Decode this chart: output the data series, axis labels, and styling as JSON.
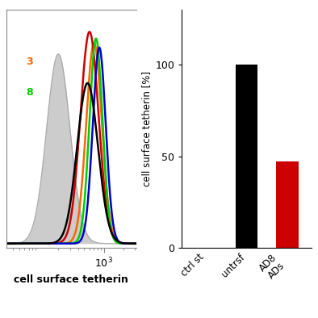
{
  "bar_categories": [
    "ctrl st",
    "untrsf",
    "AD8\nADs"
  ],
  "bar_values": [
    0,
    100,
    47
  ],
  "bar_colors": [
    "#000000",
    "#000000",
    "#cc0000"
  ],
  "ylabel_bar": "cell surface tetherin [%]",
  "yticks_bar": [
    0,
    50,
    100
  ],
  "ylim_bar": [
    0,
    130
  ],
  "flow_curves": [
    {
      "color": "#aaaaaa",
      "mean": 2.3,
      "std": 0.18,
      "peak": 0.85,
      "filled": true
    },
    {
      "color": "#ff6600",
      "mean": 2.85,
      "std": 0.12,
      "peak": 0.9,
      "filled": false
    },
    {
      "color": "#cc0000",
      "mean": 2.78,
      "std": 0.14,
      "peak": 0.95,
      "filled": false
    },
    {
      "color": "#00cc00",
      "mean": 2.88,
      "std": 0.1,
      "peak": 0.92,
      "filled": false
    },
    {
      "color": "#0000cc",
      "mean": 2.93,
      "std": 0.1,
      "peak": 0.88,
      "filled": false
    },
    {
      "color": "#000000",
      "mean": 2.75,
      "std": 0.16,
      "peak": 0.72,
      "filled": false
    }
  ],
  "xlabel_flow": "cell surface tetherin",
  "xtick_flow": 1000,
  "legend_labels": [
    "3",
    "8"
  ],
  "legend_colors": [
    "#ff6600",
    "#00cc00"
  ],
  "background_color": "#ffffff",
  "panel_border_color": "#888888"
}
